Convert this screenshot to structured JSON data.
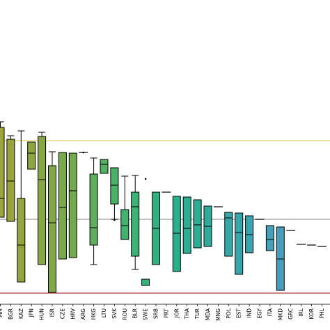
{
  "chart_data": {
    "type": "box",
    "title": "",
    "xlabel": "",
    "ylabel": "",
    "ylim": [
      0,
      474
    ],
    "y_inverted": true,
    "grid": false,
    "legend": "none",
    "reference_lines": [
      {
        "color": "#e3d36b",
        "y": 202
      },
      {
        "color": "#9a9a9a",
        "y": 315
      },
      {
        "color": "#b33a3a",
        "y": 421
      }
    ],
    "categories": [
      "MM",
      "BGR",
      "KAZ",
      "JPN",
      "HUN",
      "ISR",
      "CZE",
      "HRV",
      "ARG",
      "HKG",
      "LTU",
      "SVK",
      "ROU",
      "BLR",
      "SWE",
      "SRB",
      "PRT",
      "JOR",
      "THA",
      "TUR",
      "MDA",
      "MNG",
      "POL",
      "EST",
      "IND",
      "EGY",
      "ITA",
      "MKD",
      "GRC",
      "IRL",
      "KOR",
      "PHL"
    ],
    "boxes": [
      {
        "color": "#9aa53c",
        "q1": 183,
        "median": 285,
        "q3": 312,
        "wlo": 175,
        "whi": 312
      },
      {
        "color": "#99a43b",
        "q1": 200,
        "median": 260,
        "q3": 318,
        "wlo": 195,
        "whi": 318
      },
      {
        "color": "#93a53e",
        "q1": 285,
        "median": 352,
        "q3": 405,
        "wlo": 188,
        "whi": 405
      },
      {
        "color": "#8da640",
        "q1": 204,
        "median": 220,
        "q3": 243,
        "wlo": 204,
        "whi": 243
      },
      {
        "color": "#87a745",
        "q1": 196,
        "median": 258,
        "q3": 380,
        "wlo": 190,
        "whi": 380
      },
      {
        "color": "#82a748",
        "q1": 238,
        "median": 320,
        "q3": 420,
        "wlo": 218,
        "whi": 420
      },
      {
        "color": "#7aa94c",
        "q1": 219,
        "median": 298,
        "q3": 372,
        "wlo": 219,
        "whi": 372
      },
      {
        "color": "#72aa50",
        "q1": 220,
        "median": 274,
        "q3": 370,
        "wlo": 220,
        "whi": 370
      },
      {
        "color": "#6aac55",
        "median": 219
      },
      {
        "color": "#5fae5b",
        "q1": 250,
        "median": 327,
        "q3": 352,
        "wlo": 227,
        "whi": 380
      },
      {
        "color": "#55b062",
        "q1": 229,
        "median": 236,
        "q3": 249,
        "wlo": 229,
        "whi": 249
      },
      {
        "color": "#4bb168",
        "q1": 241,
        "median": 266,
        "q3": 293,
        "wlo": 241,
        "whi": 315
      },
      {
        "color": "#43b26e",
        "q1": 301,
        "median": 324,
        "q3": 344,
        "wlo": 253,
        "whi": 344
      },
      {
        "color": "#3cb374",
        "q1": 276,
        "median": 297,
        "q3": 368,
        "wlo": 252,
        "whi": 387
      },
      {
        "color": "#36b37a",
        "q1": 401,
        "median": 401,
        "q3": 410,
        "wlo": 401,
        "whi": 410
      },
      {
        "color": "#32b080",
        "q1": 276,
        "median": 328,
        "q3": 380,
        "wlo": 276,
        "whi": 380
      },
      {
        "color": "#2faf85",
        "median": 276
      },
      {
        "color": "#2eaf8b",
        "q1": 282,
        "median": 335,
        "q3": 390,
        "wlo": 282,
        "whi": 390
      },
      {
        "color": "#2eae90",
        "q1": 283,
        "median": 328,
        "q3": 364,
        "wlo": 283,
        "whi": 364
      },
      {
        "color": "#2ead96",
        "q1": 287,
        "median": 323,
        "q3": 356,
        "wlo": 287,
        "whi": 356
      },
      {
        "color": "#2fab9b",
        "q1": 296,
        "median": 325,
        "q3": 354,
        "wlo": 296,
        "whi": 354
      },
      {
        "color": "#30a9a0",
        "median": 297
      },
      {
        "color": "#34a8a5",
        "q1": 305,
        "median": 313,
        "q3": 368,
        "wlo": 305,
        "whi": 368
      },
      {
        "color": "#37a6aa",
        "q1": 306,
        "median": 334,
        "q3": 394,
        "wlo": 306,
        "whi": 394
      },
      {
        "color": "#3aa4af",
        "q1": 310,
        "median": 337,
        "q3": 363,
        "wlo": 310,
        "whi": 363
      },
      {
        "color": "#3fa2b4",
        "median": 315
      },
      {
        "color": "#44a0b9",
        "q1": 324,
        "median": 344,
        "q3": 360,
        "wlo": 324,
        "whi": 360
      },
      {
        "color": "#489dbd",
        "q1": 326,
        "median": 372,
        "q3": 417,
        "wlo": 326,
        "whi": 417
      },
      {
        "color": "#4c9ac1",
        "median": 331
      },
      {
        "color": "#5097c4",
        "median": 351
      },
      {
        "color": "#5494c6",
        "median": 352
      },
      {
        "color": "#5891c8",
        "median": 354
      }
    ],
    "outliers": [
      {
        "category_index": 8,
        "y": 219
      },
      {
        "category_index": 11,
        "y": 316
      },
      {
        "category_index": 14,
        "y": 257
      }
    ]
  }
}
